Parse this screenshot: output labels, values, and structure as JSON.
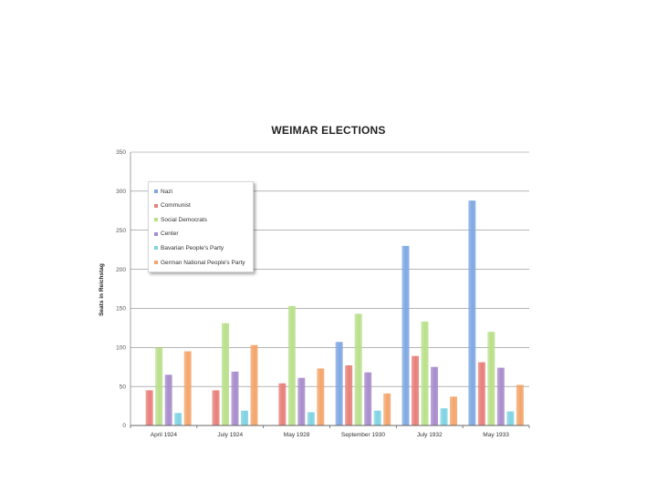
{
  "chart_data": {
    "type": "bar",
    "title": "WEIMAR ELECTIONS",
    "xlabel": "",
    "ylabel": "Seats in Reichstag",
    "ylim": [
      0,
      350
    ],
    "yticks": [
      0,
      50,
      100,
      150,
      200,
      250,
      300,
      350
    ],
    "grid": true,
    "legend_position": "top-left",
    "categories": [
      "April 1924",
      "July 1924",
      "May 1928",
      "September 1930",
      "July 1932",
      "May 1933"
    ],
    "series": [
      {
        "name": "Nazi",
        "color": "#7fa8e3",
        "values": [
          0,
          0,
          0,
          107,
          230,
          288
        ]
      },
      {
        "name": "Communist",
        "color": "#e87f79",
        "values": [
          45,
          45,
          54,
          77,
          89,
          81
        ]
      },
      {
        "name": "Social Democrats",
        "color": "#b9e08a",
        "values": [
          100,
          131,
          153,
          143,
          133,
          120
        ]
      },
      {
        "name": "Center",
        "color": "#a88ccc",
        "values": [
          65,
          69,
          61,
          68,
          75,
          74
        ]
      },
      {
        "name": "Bavarian People's Party",
        "color": "#7ed3e3",
        "values": [
          16,
          19,
          17,
          19,
          22,
          18
        ]
      },
      {
        "name": "German National People's Party",
        "color": "#f4a56b",
        "values": [
          95,
          103,
          73,
          41,
          37,
          52
        ]
      }
    ]
  }
}
